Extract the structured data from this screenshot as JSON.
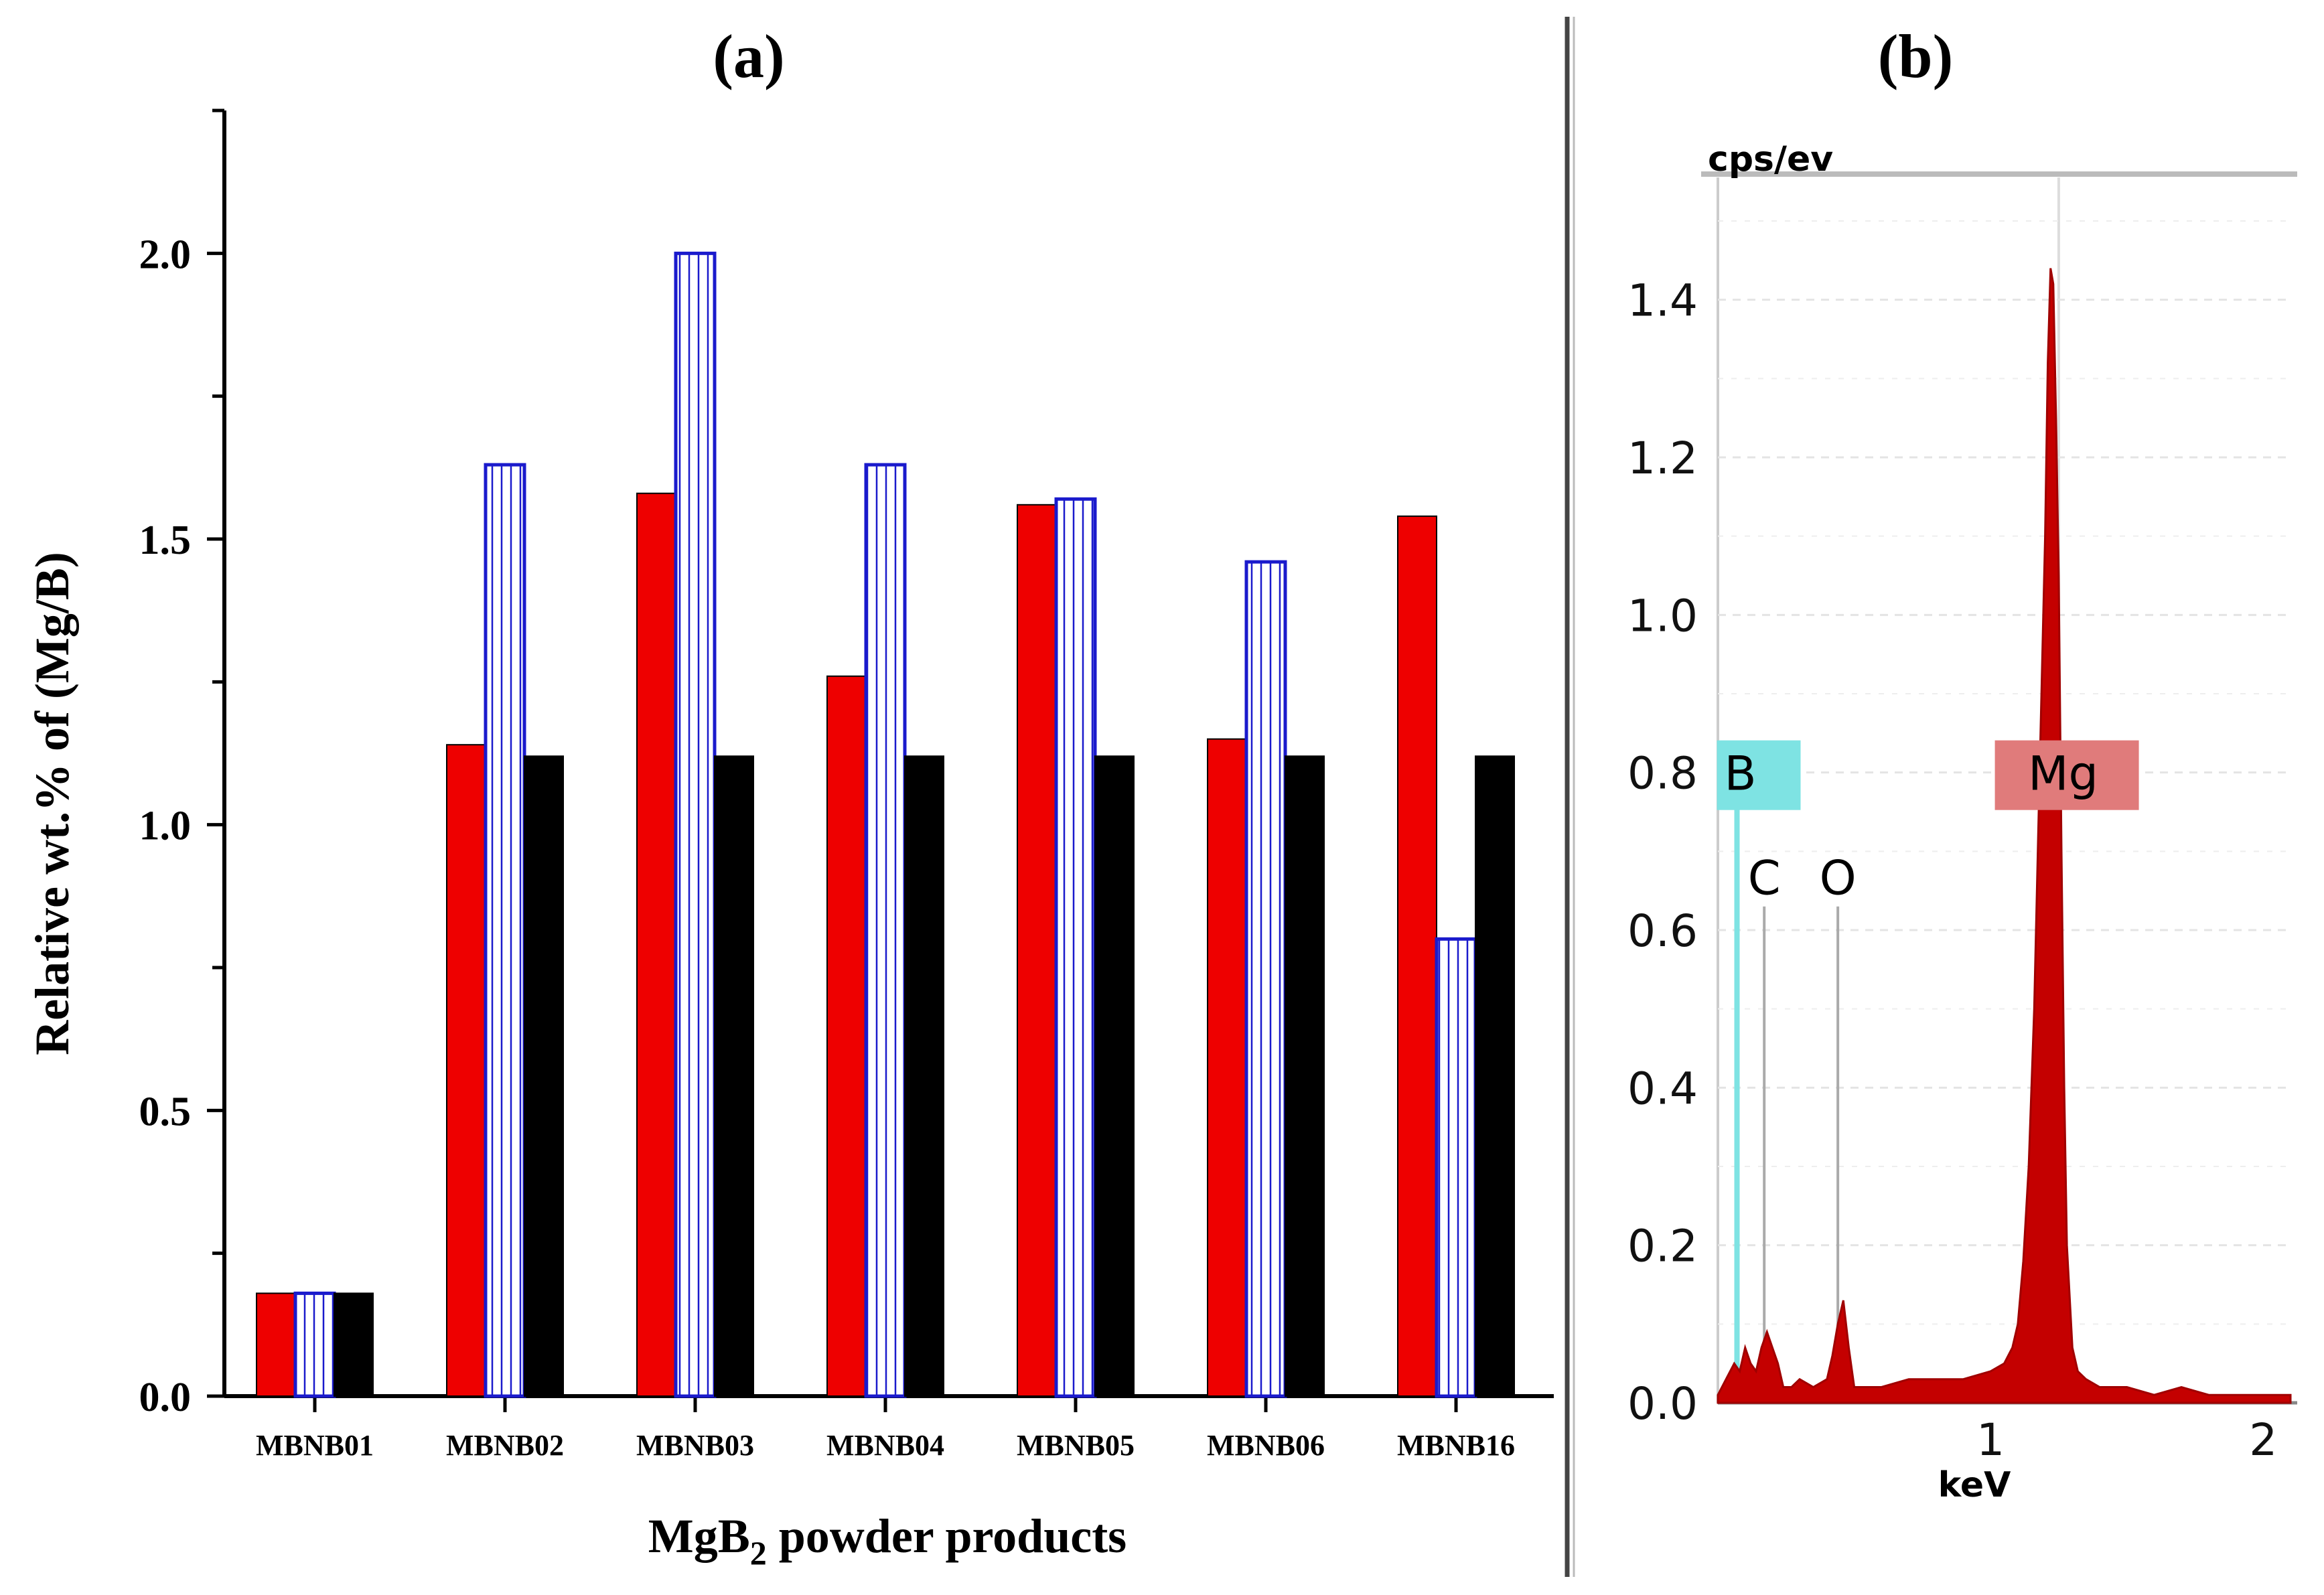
{
  "panel_labels": {
    "a": "(a)",
    "b": "(b)"
  },
  "colors": {
    "red": "#ee0000",
    "blue": "#1a1acc",
    "black": "#000000",
    "boron": "#7ee3e3",
    "mg": "#e07b7b",
    "spectrum": "#c40000"
  },
  "chart_data": [
    {
      "type": "bar",
      "title": "(a)",
      "xlabel_main": "MgB",
      "xlabel_sub": "2",
      "xlabel_rest": " powder products",
      "ylabel": "Relative wt.% of (Mg/B)",
      "categories": [
        "MBNB01",
        "MBNB02",
        "MBNB03",
        "MBNB04",
        "MBNB05",
        "MBNB06",
        "MBNB16"
      ],
      "series": [
        {
          "name": "red",
          "style": "solid-red",
          "values": [
            0.18,
            1.14,
            1.58,
            1.26,
            1.56,
            1.15,
            1.54
          ]
        },
        {
          "name": "hatched",
          "style": "hatched-blue",
          "values": [
            0.18,
            1.63,
            2.0,
            1.63,
            1.57,
            1.46,
            0.8
          ]
        },
        {
          "name": "black",
          "style": "solid-black",
          "values": [
            0.18,
            1.12,
            1.12,
            1.12,
            1.12,
            1.12,
            1.12
          ]
        }
      ],
      "ylim": [
        0,
        2.25
      ],
      "yticks": [
        0.0,
        0.5,
        1.0,
        1.5,
        2.0
      ],
      "ytick_labels": [
        "0.0",
        "0.5",
        "1.0",
        "1.5",
        "2.0"
      ]
    },
    {
      "type": "line",
      "title": "(b)",
      "xlabel": "keV",
      "ylabel": "cps/ev",
      "xlim": [
        0,
        2.1
      ],
      "ylim": [
        0,
        1.5
      ],
      "xticks": [
        1,
        2
      ],
      "xtick_labels": [
        "1",
        "2"
      ],
      "yticks": [
        0.0,
        0.2,
        0.4,
        0.6,
        0.8,
        1.0,
        1.2,
        1.4
      ],
      "ytick_labels": [
        "0.0",
        "0.2",
        "0.4",
        "0.6",
        "0.8",
        "1.0",
        "1.2",
        "1.4"
      ],
      "element_markers": [
        {
          "label": "B",
          "energy": 0.07,
          "height": 0.8,
          "box": true,
          "color": "boron"
        },
        {
          "label": "C",
          "energy": 0.17,
          "height": 0.63,
          "box": false,
          "color": "grey"
        },
        {
          "label": "O",
          "energy": 0.44,
          "height": 0.63,
          "box": false,
          "color": "grey"
        },
        {
          "label": "Mg",
          "energy": 1.2,
          "height": 0.8,
          "box": true,
          "color": "mg"
        }
      ],
      "spectrum": {
        "x": [
          0.0,
          0.03,
          0.06,
          0.08,
          0.1,
          0.12,
          0.14,
          0.16,
          0.18,
          0.2,
          0.22,
          0.24,
          0.27,
          0.3,
          0.35,
          0.4,
          0.42,
          0.44,
          0.46,
          0.48,
          0.5,
          0.55,
          0.6,
          0.7,
          0.8,
          0.9,
          1.0,
          1.05,
          1.08,
          1.1,
          1.12,
          1.14,
          1.16,
          1.18,
          1.2,
          1.21,
          1.22,
          1.23,
          1.24,
          1.25,
          1.26,
          1.27,
          1.28,
          1.3,
          1.32,
          1.35,
          1.4,
          1.5,
          1.6,
          1.7,
          1.8,
          1.9,
          2.0,
          2.1
        ],
        "y": [
          0.01,
          0.03,
          0.05,
          0.04,
          0.07,
          0.05,
          0.04,
          0.07,
          0.09,
          0.07,
          0.05,
          0.02,
          0.02,
          0.03,
          0.02,
          0.03,
          0.06,
          0.1,
          0.13,
          0.07,
          0.02,
          0.02,
          0.02,
          0.03,
          0.03,
          0.03,
          0.04,
          0.05,
          0.07,
          0.1,
          0.18,
          0.3,
          0.5,
          0.8,
          1.1,
          1.32,
          1.44,
          1.42,
          1.25,
          1.05,
          0.7,
          0.4,
          0.2,
          0.07,
          0.04,
          0.03,
          0.02,
          0.02,
          0.01,
          0.02,
          0.01,
          0.01,
          0.01,
          0.01
        ]
      }
    }
  ]
}
